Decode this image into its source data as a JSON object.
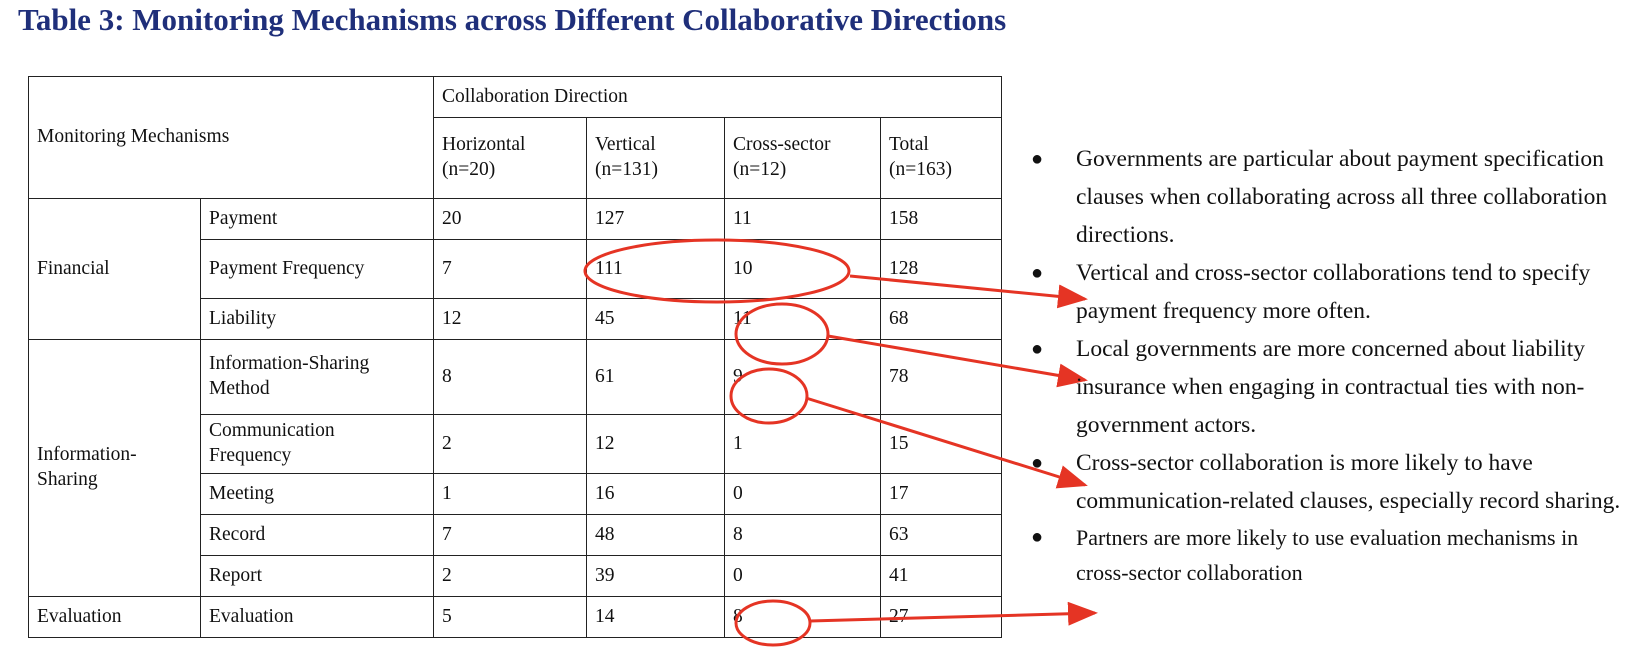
{
  "title": "Table 3: Monitoring Mechanisms across Different Collaborative Directions",
  "table": {
    "corner_label": "Monitoring Mechanisms",
    "group_header": "Collaboration Direction",
    "columns": [
      {
        "name": "Horizontal",
        "n": "(n=20)"
      },
      {
        "name": "Vertical",
        "n": "(n=131)"
      },
      {
        "name": "Cross-sector",
        "n": "(n=12)"
      },
      {
        "name": "Total",
        "n": "(n=163)"
      }
    ],
    "categories": {
      "financial": "Financial",
      "information_sharing": "Information-\nSharing",
      "evaluation": "Evaluation"
    },
    "rows": [
      {
        "mechanism": "Payment",
        "values": [
          "20",
          "127",
          "11",
          "158"
        ]
      },
      {
        "mechanism": "Payment Frequency",
        "values": [
          "7",
          "111",
          "10",
          "128"
        ]
      },
      {
        "mechanism": "Liability",
        "values": [
          "12",
          "45",
          "11",
          "68"
        ]
      },
      {
        "mechanism": "Information-Sharing\nMethod",
        "values": [
          "8",
          "61",
          "9",
          "78"
        ]
      },
      {
        "mechanism": "Communication\nFrequency",
        "values": [
          "2",
          "12",
          "1",
          "15"
        ]
      },
      {
        "mechanism": "Meeting",
        "values": [
          "1",
          "16",
          "0",
          "17"
        ]
      },
      {
        "mechanism": "Record",
        "values": [
          "7",
          "48",
          "8",
          "63"
        ]
      },
      {
        "mechanism": "Report",
        "values": [
          "2",
          "39",
          "0",
          "41"
        ]
      },
      {
        "mechanism": "Evaluation",
        "values": [
          "5",
          "14",
          "8",
          "27"
        ]
      }
    ]
  },
  "annotation_color": "#e53424",
  "bullet_symbol": "●",
  "findings": [
    "Governments are particular about payment specification clauses when collaborating across all three collaboration directions.",
    "Vertical and cross-sector collaborations tend to specify payment frequency more often.",
    "Local governments are more concerned about liability insurance when engaging in contractual ties with non-government actors.",
    "Cross-sector collaboration is more likely to have communication-related clauses, especially record sharing.",
    "Partners are more likely to use evaluation mechanisms in cross-sector collaboration"
  ]
}
